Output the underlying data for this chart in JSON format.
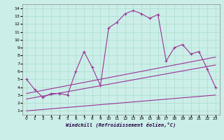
{
  "xlabel": "Windchill (Refroidissement éolien,°C)",
  "xlim": [
    -0.5,
    23.5
  ],
  "ylim": [
    0.5,
    14.5
  ],
  "xticks": [
    0,
    1,
    2,
    3,
    4,
    5,
    6,
    7,
    8,
    9,
    10,
    11,
    12,
    13,
    14,
    15,
    16,
    17,
    18,
    19,
    20,
    21,
    22,
    23
  ],
  "yticks": [
    1,
    2,
    3,
    4,
    5,
    6,
    7,
    8,
    9,
    10,
    11,
    12,
    13,
    14
  ],
  "bg_color": "#cceee8",
  "line_color": "#993399",
  "grid_color": "#aaddcc",
  "line1_x": [
    0,
    1,
    2,
    3,
    4,
    5,
    6,
    7,
    8,
    9,
    10,
    11,
    12,
    13,
    14,
    15,
    16,
    17,
    18,
    19,
    20,
    21,
    22,
    23
  ],
  "line1_y": [
    5.0,
    3.7,
    2.7,
    3.2,
    3.2,
    3.0,
    6.0,
    8.5,
    6.5,
    4.2,
    11.5,
    12.2,
    13.3,
    13.7,
    13.3,
    12.7,
    13.2,
    7.3,
    9.0,
    9.4,
    8.2,
    8.5,
    6.3,
    4.0
  ],
  "line2_x": [
    0,
    23
  ],
  "line2_y": [
    3.2,
    7.8
  ],
  "line3_x": [
    0,
    23
  ],
  "line3_y": [
    2.5,
    6.8
  ],
  "line4_x": [
    0,
    23
  ],
  "line4_y": [
    1.0,
    3.0
  ]
}
